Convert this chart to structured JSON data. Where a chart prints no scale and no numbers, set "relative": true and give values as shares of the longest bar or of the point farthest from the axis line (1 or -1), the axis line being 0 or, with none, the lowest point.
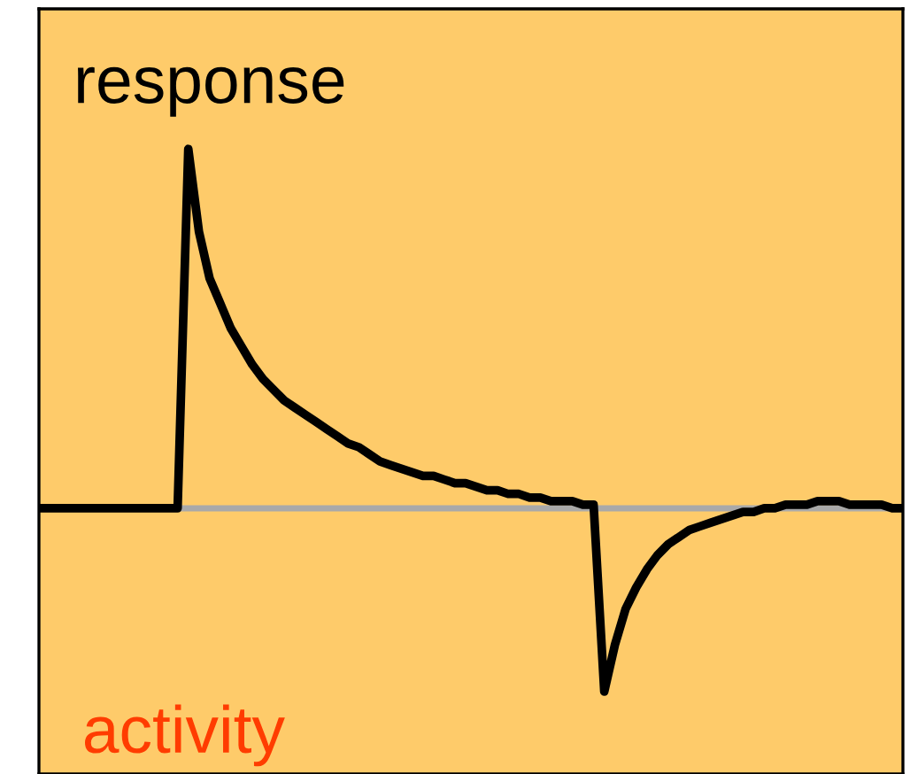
{
  "chart_data": {
    "type": "line",
    "relative": true,
    "legend": false,
    "marker": "none",
    "line_style": "solid",
    "annotations": [
      "response",
      "activity"
    ],
    "categories": [
      null,
      null,
      null,
      null,
      null,
      null,
      null,
      null,
      null,
      null,
      null,
      null,
      null,
      null,
      null,
      null,
      null,
      null,
      null,
      null,
      null,
      null,
      null,
      null,
      null,
      null,
      null,
      null,
      null,
      null,
      null,
      null,
      null,
      null,
      null,
      null,
      null,
      null,
      null,
      null,
      null,
      null,
      null,
      null,
      null,
      null,
      null,
      null,
      null,
      null,
      null,
      null,
      null,
      null,
      null,
      null,
      null,
      null,
      null,
      null,
      null,
      null,
      null,
      null,
      null,
      null,
      null,
      null,
      null,
      null,
      null,
      null,
      null,
      null,
      null,
      null,
      null,
      null,
      null,
      null,
      null,
      null
    ],
    "series": [
      {
        "color": "#000000",
        "values": [
          0,
          0,
          0,
          0,
          0,
          0,
          0,
          0,
          0,
          0,
          0,
          0,
          0,
          0,
          1,
          0.77,
          0.64,
          0.57,
          0.5,
          0.45,
          0.4,
          0.36,
          0.33,
          0.3,
          0.28,
          0.26,
          0.24,
          0.22,
          0.2,
          0.18,
          0.17,
          0.15,
          0.13,
          0.12,
          0.11,
          0.1,
          0.09,
          0.09,
          0.08,
          0.07,
          0.07,
          0.06,
          0.05,
          0.05,
          0.04,
          0.04,
          0.03,
          0.03,
          0.02,
          0.02,
          0.02,
          0.01,
          0.01,
          -0.51,
          -0.38,
          -0.28,
          -0.22,
          -0.17,
          -0.13,
          -0.1,
          -0.08,
          -0.06,
          -0.05,
          -0.04,
          -0.03,
          -0.02,
          -0.01,
          -0.01,
          0,
          0,
          0.01,
          0.01,
          0.01,
          0.02,
          0.02,
          0.02,
          0.01,
          0.01,
          0.01,
          0.01,
          0,
          0
        ]
      }
    ]
  }
}
